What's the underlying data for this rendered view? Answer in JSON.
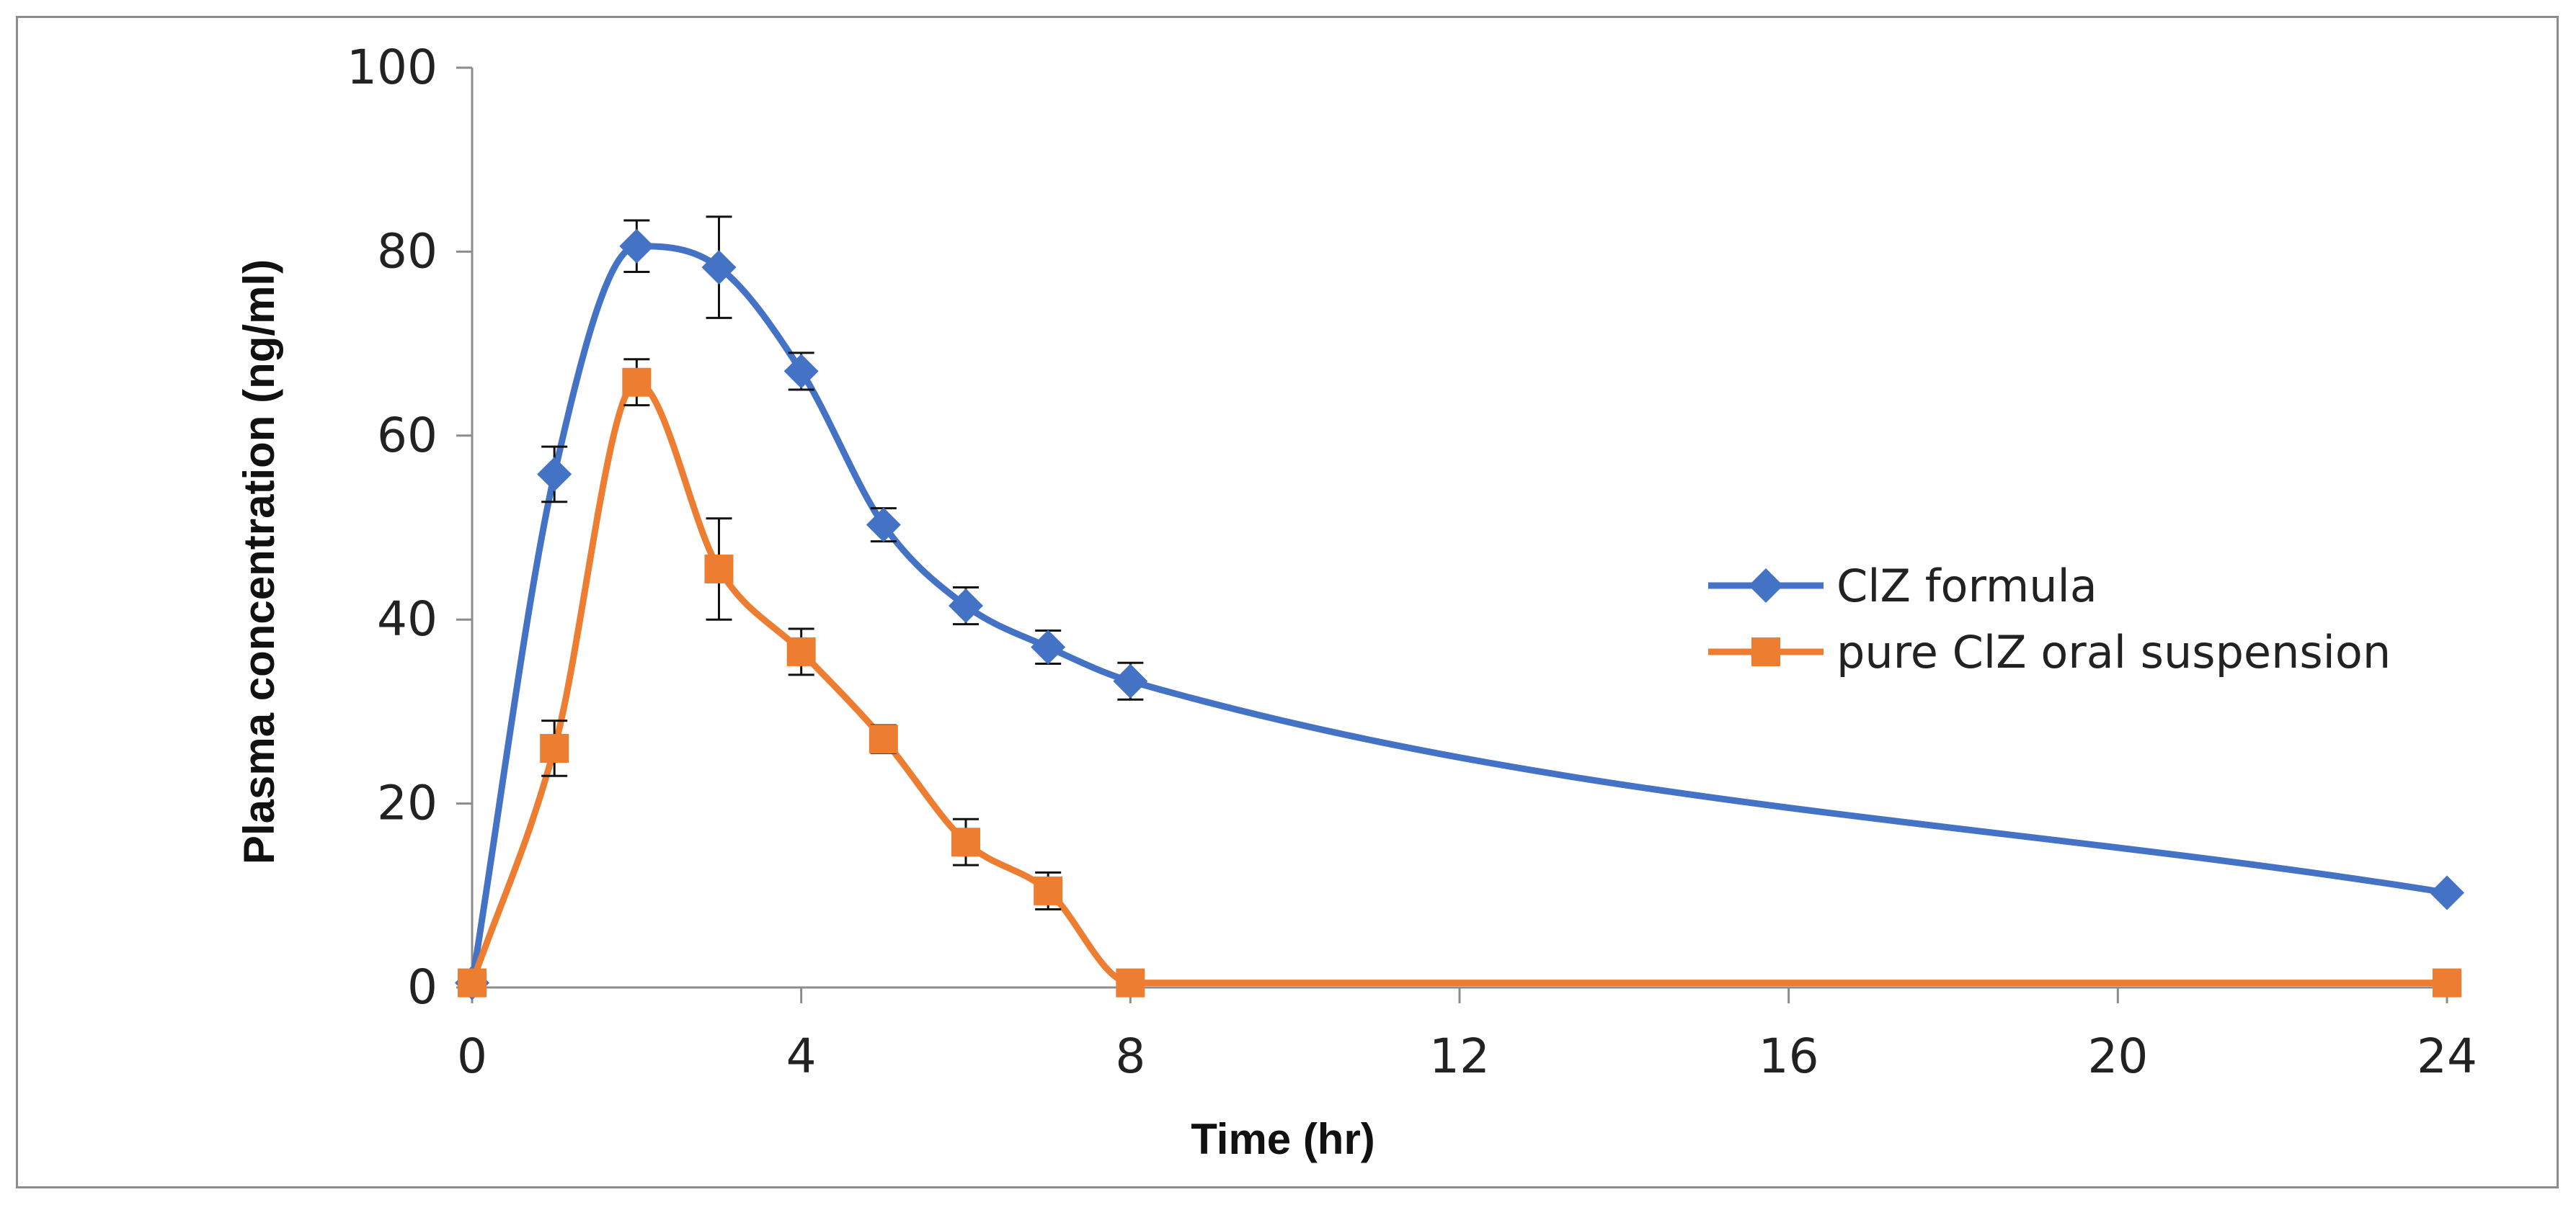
{
  "chart_data": {
    "type": "line",
    "title": "",
    "xlabel": "Time (hr)",
    "ylabel": "Plasma concentration (ng/ml)",
    "xlim": [
      0,
      24
    ],
    "ylim": [
      0,
      100
    ],
    "xticks": [
      0,
      4,
      8,
      12,
      16,
      20,
      24
    ],
    "yticks": [
      0,
      20,
      40,
      60,
      80,
      100
    ],
    "grid": false,
    "smoothed": true,
    "legend_position": "right",
    "series": [
      {
        "name": "ClZ formula",
        "color": "#4472C4",
        "marker": "diamond",
        "x": [
          0,
          1,
          2,
          3,
          4,
          5,
          6,
          7,
          8,
          24
        ],
        "y": [
          0.5,
          55.8,
          80.6,
          78.3,
          67.0,
          50.3,
          41.5,
          37.0,
          33.3,
          10.3
        ],
        "err": [
          0,
          3,
          2.8,
          5.5,
          2,
          1.8,
          2,
          1.8,
          2,
          0
        ]
      },
      {
        "name": "pure ClZ oral suspension",
        "color": "#ED7D31",
        "marker": "square",
        "x": [
          0,
          1,
          2,
          3,
          4,
          5,
          6,
          7,
          8,
          24
        ],
        "y": [
          0.5,
          26.0,
          65.8,
          45.5,
          36.5,
          27.0,
          15.8,
          10.5,
          0.5,
          0.5
        ],
        "err": [
          0,
          3,
          2.5,
          5.5,
          2.5,
          1.5,
          2.5,
          2,
          0,
          0
        ]
      }
    ]
  }
}
